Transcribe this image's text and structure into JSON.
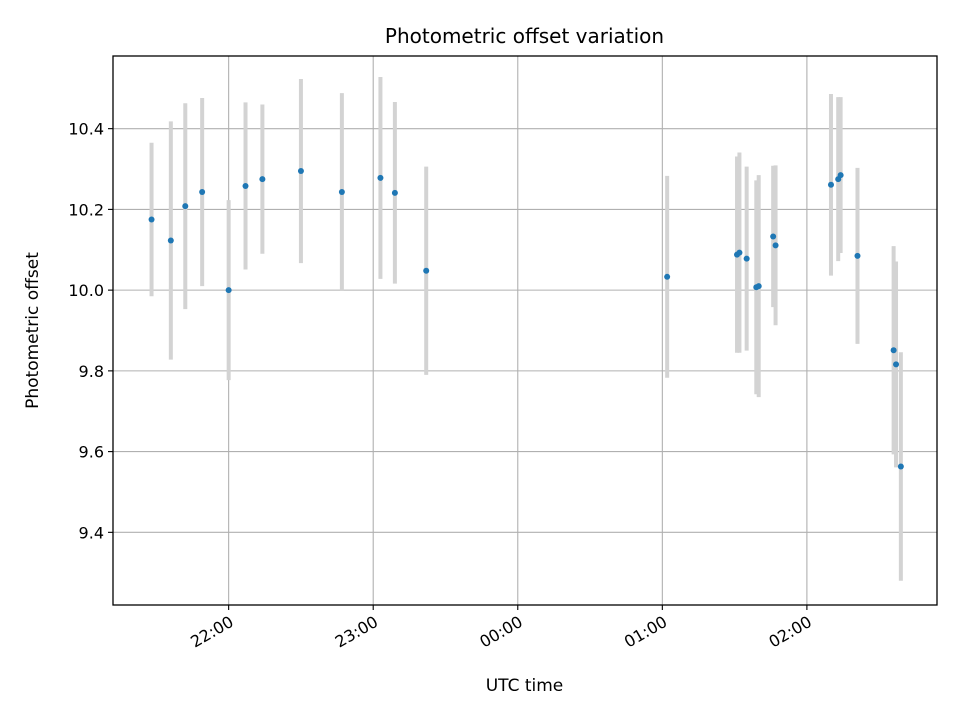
{
  "chart_data": {
    "type": "scatter",
    "title": "Photometric offset variation",
    "xlabel": "UTC time",
    "ylabel": "Photometric offset",
    "x_axis": {
      "type": "time",
      "range": [
        "21:12",
        "02:54"
      ],
      "ticks": [
        "22:00",
        "23:00",
        "00:00",
        "01:00",
        "02:00"
      ],
      "tick_rotation_deg": 30
    },
    "y_axis": {
      "range": [
        9.22,
        10.58
      ],
      "ticks": [
        "9.4",
        "9.6",
        "9.8",
        "10.0",
        "10.2",
        "10.4"
      ]
    },
    "grid": true,
    "colors": {
      "points": "#1f77b4",
      "errorbars": "#d3d3d3",
      "grid": "#b0b0b0"
    },
    "points": [
      {
        "x": "21:28",
        "y": 10.175,
        "err": 0.19
      },
      {
        "x": "21:36",
        "y": 10.123,
        "err": 0.295
      },
      {
        "x": "21:42",
        "y": 10.208,
        "err": 0.255
      },
      {
        "x": "21:49",
        "y": 10.243,
        "err": 0.233
      },
      {
        "x": "22:00",
        "y": 10.0,
        "err": 0.223
      },
      {
        "x": "22:07",
        "y": 10.258,
        "err": 0.207
      },
      {
        "x": "22:14",
        "y": 10.275,
        "err": 0.185
      },
      {
        "x": "22:30",
        "y": 10.295,
        "err": 0.228
      },
      {
        "x": "22:47",
        "y": 10.243,
        "err": 0.245
      },
      {
        "x": "23:03",
        "y": 10.278,
        "err": 0.25
      },
      {
        "x": "23:09",
        "y": 10.241,
        "err": 0.225
      },
      {
        "x": "23:22",
        "y": 10.048,
        "err": 0.258
      },
      {
        "x": "01:02",
        "y": 10.033,
        "err": 0.25
      },
      {
        "x": "01:31",
        "y": 10.088,
        "err": 0.243
      },
      {
        "x": "01:32",
        "y": 10.093,
        "err": 0.248
      },
      {
        "x": "01:35",
        "y": 10.078,
        "err": 0.228
      },
      {
        "x": "01:39",
        "y": 10.007,
        "err": 0.265
      },
      {
        "x": "01:40",
        "y": 10.01,
        "err": 0.275
      },
      {
        "x": "01:46",
        "y": 10.133,
        "err": 0.175
      },
      {
        "x": "01:47",
        "y": 10.111,
        "err": 0.198
      },
      {
        "x": "02:10",
        "y": 10.261,
        "err": 0.225
      },
      {
        "x": "02:13",
        "y": 10.275,
        "err": 0.203
      },
      {
        "x": "02:14",
        "y": 10.285,
        "err": 0.193
      },
      {
        "x": "02:21",
        "y": 10.085,
        "err": 0.218
      },
      {
        "x": "02:36",
        "y": 9.851,
        "err": 0.258
      },
      {
        "x": "02:37",
        "y": 9.816,
        "err": 0.255
      },
      {
        "x": "02:39",
        "y": 9.563,
        "err": 0.283
      }
    ]
  }
}
